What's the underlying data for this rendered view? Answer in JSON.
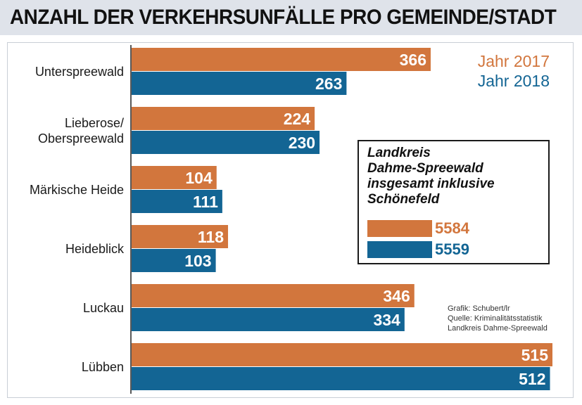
{
  "header": {
    "title": "ANZAHL DER VERKEHRSUNFÄLLE PRO GEMEINDE/STADT"
  },
  "colors": {
    "y2017": "#d2763d",
    "y2018": "#136594",
    "header_bg": "#dfe3ea"
  },
  "chart_data": {
    "type": "bar",
    "orientation": "horizontal",
    "title": "ANZAHL DER VERKEHRSUNFÄLLE PRO GEMEINDE/STADT",
    "categories": [
      [
        "Unterspreewald"
      ],
      [
        "Lieberose/",
        "Oberspreewald"
      ],
      [
        "Märkische Heide"
      ],
      [
        "Heideblick"
      ],
      [
        "Luckau"
      ],
      [
        "Lübben"
      ]
    ],
    "series": [
      {
        "name": "Jahr 2017",
        "color": "#d2763d",
        "values": [
          366,
          224,
          104,
          118,
          346,
          515
        ]
      },
      {
        "name": "Jahr 2018",
        "color": "#136594",
        "values": [
          263,
          230,
          111,
          103,
          334,
          512
        ]
      }
    ],
    "xlim": [
      0,
      515
    ],
    "grid": false,
    "legend_position": "top-right",
    "data_labels": true
  },
  "legend": {
    "y2017": "Jahr 2017",
    "y2018": "Jahr 2018"
  },
  "totals_box": {
    "title": "Landkreis\nDahme-Spreewald\ninsgesamt inklusive\nSchönefeld",
    "value_2017": "5584",
    "value_2018": "5559"
  },
  "credits": {
    "line1": "Grafik: Schubert/lr",
    "line2": "Quelle: Kriminalitätsstatistik",
    "line3": "Landkreis Dahme-Spreewald"
  }
}
